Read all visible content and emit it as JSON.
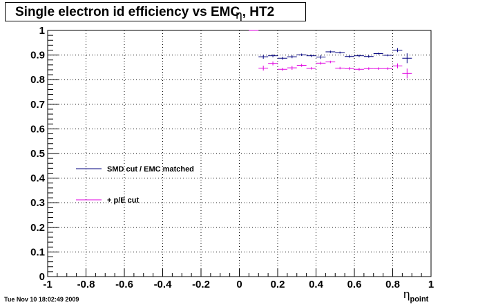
{
  "title": "Single electron id efficiency vs EMC",
  "title_symbol": "η",
  "title_suffix": ", HT2",
  "footer": "Tue Nov 10 18:02:49 2009",
  "chart_data": {
    "type": "scatter",
    "title": "Single electron id efficiency vs EMC η, HT2",
    "xlabel_symbol": "η",
    "xlabel_sub": "point",
    "ylabel": "",
    "xlim": [
      -1,
      1
    ],
    "ylim": [
      0,
      1
    ],
    "grid": true,
    "legend_position": "left-middle",
    "x_ticks": [
      "-1",
      "-0.8",
      "-0.6",
      "-0.4",
      "-0.2",
      "0",
      "0.2",
      "0.4",
      "0.6",
      "0.8",
      "1"
    ],
    "y_ticks": [
      "0",
      "0.1",
      "0.2",
      "0.3",
      "0.4",
      "0.5",
      "0.6",
      "0.7",
      "0.8",
      "0.9",
      "1"
    ],
    "x_bin_half_width": 0.025,
    "series": [
      {
        "name": "SMD cut / EMC matched",
        "color": "#00007f",
        "points": [
          {
            "x": 0.075,
            "y": 1.0,
            "err": 0.0
          },
          {
            "x": 0.125,
            "y": 0.893,
            "err": 0.008
          },
          {
            "x": 0.175,
            "y": 0.897,
            "err": 0.006
          },
          {
            "x": 0.225,
            "y": 0.887,
            "err": 0.006
          },
          {
            "x": 0.275,
            "y": 0.893,
            "err": 0.006
          },
          {
            "x": 0.325,
            "y": 0.901,
            "err": 0.005
          },
          {
            "x": 0.375,
            "y": 0.897,
            "err": 0.005
          },
          {
            "x": 0.425,
            "y": 0.892,
            "err": 0.008
          },
          {
            "x": 0.475,
            "y": 0.913,
            "err": 0.005
          },
          {
            "x": 0.525,
            "y": 0.91,
            "err": 0.004
          },
          {
            "x": 0.575,
            "y": 0.894,
            "err": 0.005
          },
          {
            "x": 0.625,
            "y": 0.897,
            "err": 0.005
          },
          {
            "x": 0.675,
            "y": 0.894,
            "err": 0.005
          },
          {
            "x": 0.725,
            "y": 0.906,
            "err": 0.004
          },
          {
            "x": 0.775,
            "y": 0.899,
            "err": 0.004
          },
          {
            "x": 0.825,
            "y": 0.92,
            "err": 0.008
          },
          {
            "x": 0.875,
            "y": 0.887,
            "err": 0.02
          }
        ]
      },
      {
        "name": "+ p/E cut",
        "color": "#e000e0",
        "points": [
          {
            "x": 0.075,
            "y": 1.0,
            "err": 0.0
          },
          {
            "x": 0.125,
            "y": 0.847,
            "err": 0.01
          },
          {
            "x": 0.175,
            "y": 0.866,
            "err": 0.008
          },
          {
            "x": 0.225,
            "y": 0.842,
            "err": 0.006
          },
          {
            "x": 0.275,
            "y": 0.848,
            "err": 0.008
          },
          {
            "x": 0.325,
            "y": 0.858,
            "err": 0.006
          },
          {
            "x": 0.375,
            "y": 0.846,
            "err": 0.005
          },
          {
            "x": 0.425,
            "y": 0.867,
            "err": 0.006
          },
          {
            "x": 0.475,
            "y": 0.872,
            "err": 0.005
          },
          {
            "x": 0.525,
            "y": 0.847,
            "err": 0.005
          },
          {
            "x": 0.575,
            "y": 0.845,
            "err": 0.006
          },
          {
            "x": 0.625,
            "y": 0.842,
            "err": 0.006
          },
          {
            "x": 0.675,
            "y": 0.845,
            "err": 0.005
          },
          {
            "x": 0.725,
            "y": 0.845,
            "err": 0.005
          },
          {
            "x": 0.775,
            "y": 0.845,
            "err": 0.005
          },
          {
            "x": 0.825,
            "y": 0.856,
            "err": 0.01
          },
          {
            "x": 0.875,
            "y": 0.825,
            "err": 0.02
          }
        ]
      }
    ]
  }
}
